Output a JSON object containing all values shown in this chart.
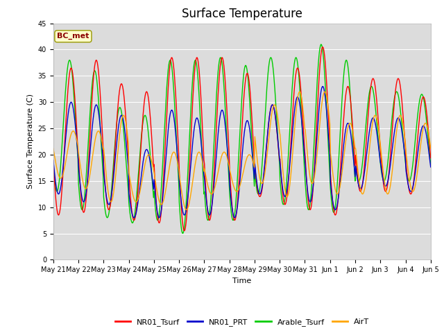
{
  "title": "Surface Temperature",
  "ylabel": "Surface Temperature (C)",
  "xlabel": "Time",
  "ylim": [
    0,
    45
  ],
  "annotation": "BC_met",
  "axes_bg": "#dcdcdc",
  "grid_color": "white",
  "series_colors": {
    "NR01_Tsurf": "#ff0000",
    "NR01_PRT": "#0000cc",
    "Arable_Tsurf": "#00cc00",
    "AirT": "#ffa500"
  },
  "tick_labels": [
    "May 21",
    "May 22",
    "May 23",
    "May 24",
    "May 25",
    "May 26",
    "May 27",
    "May 28",
    "May 29",
    "May 30",
    "May 31",
    "Jun 1",
    "Jun 2",
    "Jun 3",
    "Jun 4",
    "Jun 5"
  ],
  "n_days": 15,
  "nr01_mins": [
    8.5,
    9.0,
    9.5,
    7.5,
    7.0,
    5.5,
    7.5,
    7.5,
    12.0,
    10.5,
    9.5,
    8.5,
    13.0,
    13.0,
    12.5
  ],
  "nr01_maxs": [
    36.5,
    38.0,
    33.5,
    32.0,
    38.5,
    38.5,
    38.5,
    35.5,
    29.5,
    36.5,
    40.5,
    33.0,
    34.5,
    34.5,
    31.0
  ],
  "prt_mins": [
    12.5,
    11.0,
    10.5,
    8.0,
    8.0,
    8.5,
    8.5,
    8.0,
    12.5,
    12.0,
    11.0,
    9.5,
    13.5,
    14.0,
    13.0
  ],
  "prt_maxs": [
    30.0,
    29.5,
    27.5,
    21.0,
    28.5,
    27.0,
    28.5,
    26.5,
    29.5,
    31.0,
    33.0,
    26.0,
    27.0,
    27.0,
    25.5
  ],
  "arable_mins": [
    13.0,
    9.5,
    8.0,
    7.0,
    7.5,
    5.0,
    7.5,
    7.5,
    12.5,
    10.5,
    9.5,
    9.0,
    15.0,
    15.0,
    15.0
  ],
  "arable_maxs": [
    38.0,
    36.0,
    29.0,
    27.5,
    38.0,
    38.0,
    38.5,
    37.0,
    38.5,
    38.5,
    41.0,
    38.0,
    33.0,
    32.0,
    31.5
  ],
  "airt_mins": [
    15.5,
    13.5,
    11.0,
    11.0,
    10.5,
    9.5,
    12.5,
    13.0,
    14.5,
    12.0,
    14.5,
    12.5,
    12.5,
    12.5,
    13.0
  ],
  "airt_maxs": [
    24.5,
    24.5,
    27.5,
    20.0,
    20.5,
    20.5,
    20.5,
    20.0,
    29.5,
    32.0,
    32.0,
    26.0,
    27.5,
    27.5,
    26.0
  ],
  "linewidth": 1.0,
  "title_fontsize": 12,
  "axis_label_fontsize": 8,
  "tick_fontsize": 7,
  "legend_fontsize": 8
}
